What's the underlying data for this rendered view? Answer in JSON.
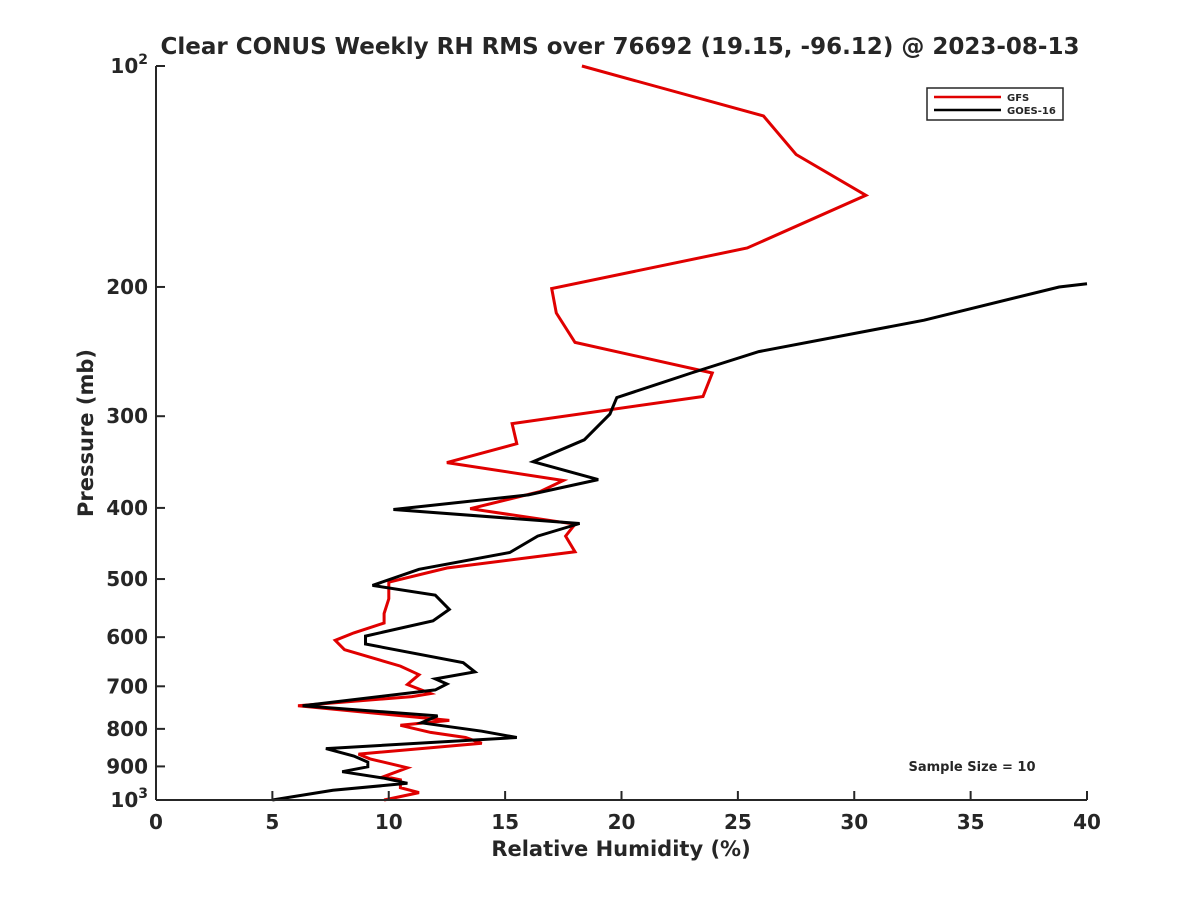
{
  "chart_data": {
    "type": "line",
    "title": "Clear CONUS Weekly RH RMS over 76692 (19.15, -96.12) @ 2023-08-13",
    "xlabel": "Relative Humidity (%)",
    "ylabel": "Pressure (mb)",
    "xlim": [
      0,
      40
    ],
    "ylim": [
      100,
      1000
    ],
    "yscale": "log",
    "y_reversed": true,
    "grid": false,
    "legend_position": "top-right",
    "x_ticks": [
      {
        "value": 0,
        "label": "0"
      },
      {
        "value": 5,
        "label": "5"
      },
      {
        "value": 10,
        "label": "10"
      },
      {
        "value": 15,
        "label": "15"
      },
      {
        "value": 20,
        "label": "20"
      },
      {
        "value": 25,
        "label": "25"
      },
      {
        "value": 30,
        "label": "30"
      },
      {
        "value": 35,
        "label": "35"
      },
      {
        "value": 40,
        "label": "40"
      }
    ],
    "y_ticks": [
      {
        "value": 100,
        "base": "10",
        "exp": "2"
      },
      {
        "value": 200,
        "base": "200",
        "exp": ""
      },
      {
        "value": 300,
        "base": "300",
        "exp": ""
      },
      {
        "value": 400,
        "base": "400",
        "exp": ""
      },
      {
        "value": 500,
        "base": "500",
        "exp": ""
      },
      {
        "value": 600,
        "base": "600",
        "exp": ""
      },
      {
        "value": 700,
        "base": "700",
        "exp": ""
      },
      {
        "value": 800,
        "base": "800",
        "exp": ""
      },
      {
        "value": 900,
        "base": "900",
        "exp": ""
      },
      {
        "value": 1000,
        "base": "10",
        "exp": "3"
      }
    ],
    "annotation": "Sample Size = 10",
    "series": [
      {
        "name": "GFS",
        "color": "#e00000",
        "x": [
          18.3,
          26.1,
          27.5,
          30.5,
          25.4,
          17.0,
          17.2,
          18.0,
          23.9,
          23.5,
          15.3,
          15.5,
          12.5,
          17.5,
          16.5,
          13.5,
          18.0,
          17.6,
          18.0,
          12.5,
          10.0,
          10.0,
          9.8,
          9.8,
          8.5,
          7.7,
          8.1,
          10.5,
          11.3,
          10.8,
          11.8,
          11.0,
          6.1,
          12.6,
          10.5,
          11.8,
          13.3,
          14.0,
          8.7,
          9.2,
          10.8,
          9.8,
          10.5,
          10.5,
          11.3,
          9.8
        ],
        "y": [
          100,
          117,
          132,
          150,
          177,
          201,
          217,
          238,
          262,
          282,
          307,
          327,
          347,
          367,
          380,
          401,
          421,
          437,
          459,
          483,
          505,
          532,
          557,
          574,
          592,
          606,
          624,
          657,
          675,
          696,
          716,
          723,
          744,
          779,
          791,
          809,
          822,
          837,
          866,
          879,
          904,
          929,
          939,
          962,
          977,
          1000
        ]
      },
      {
        "name": "GOES-16",
        "color": "#000000",
        "x": [
          40.0,
          38.8,
          33.0,
          25.9,
          23.0,
          19.8,
          19.5,
          18.4,
          16.2,
          19.0,
          16.0,
          10.2,
          18.2,
          16.4,
          15.2,
          11.3,
          9.3,
          12.0,
          12.6,
          11.9,
          9.0,
          9.0,
          13.2,
          13.7,
          12.0,
          12.5,
          12.0,
          6.3,
          12.1,
          11.4,
          14.0,
          15.5,
          7.3,
          8.5,
          9.1,
          9.1,
          8.0,
          9.8,
          10.8,
          7.6,
          5.0
        ],
        "y": [
          198,
          200,
          222,
          245,
          262,
          283,
          298,
          323,
          346,
          366,
          384,
          402,
          420,
          437,
          460,
          485,
          510,
          526,
          550,
          570,
          598,
          613,
          650,
          669,
          684,
          695,
          708,
          744,
          768,
          785,
          806,
          822,
          851,
          871,
          888,
          901,
          915,
          934,
          949,
          970,
          1000
        ]
      }
    ]
  }
}
